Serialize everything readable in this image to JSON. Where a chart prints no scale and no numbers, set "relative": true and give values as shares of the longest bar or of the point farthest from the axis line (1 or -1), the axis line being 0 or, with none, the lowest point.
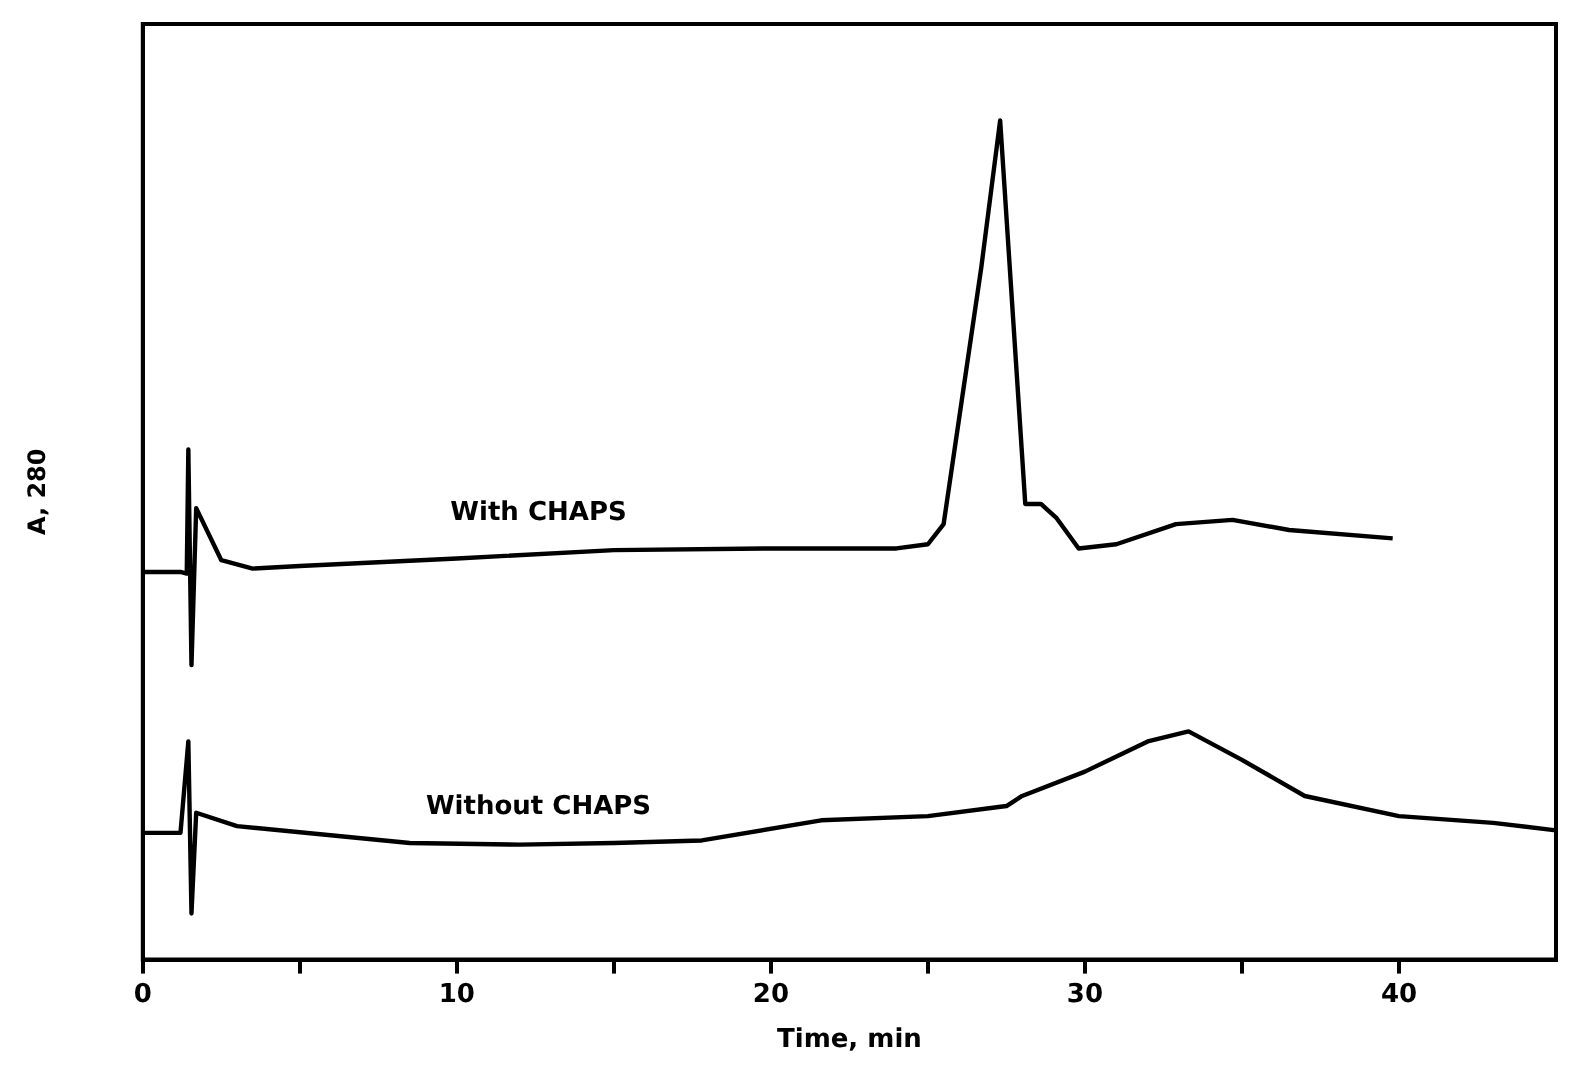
{
  "chart_data": {
    "type": "line",
    "relative": true,
    "xlabel": "Time, min",
    "ylabel": "A, 280",
    "xlim": [
      0,
      45
    ],
    "xticks": [
      0,
      {
        "value": 5,
        "label": null
      },
      10,
      {
        "value": 15,
        "label": null
      },
      20,
      {
        "value": 25,
        "label": null
      },
      30,
      {
        "value": 35,
        "label": null
      },
      40
    ],
    "grid": false,
    "legend": false,
    "marker": "none",
    "line_style": "solid",
    "series": [
      {
        "name": "With CHAPS",
        "color": "#000000",
        "x": [
          0,
          1.2,
          1.4,
          1.45,
          1.55,
          1.7,
          2.5,
          3.5,
          5,
          10,
          15,
          20,
          24,
          25,
          25.5,
          26.7,
          27.3,
          28.1,
          28.6,
          29.1,
          29.8,
          31,
          32.9,
          34.7,
          36.5,
          39.8
        ],
        "values": [
          0.462,
          0.462,
          0.46,
          0.608,
          0.351,
          0.538,
          0.476,
          0.466,
          0.469,
          0.478,
          0.488,
          0.49,
          0.49,
          0.495,
          0.519,
          0.825,
          1,
          0.543,
          0.543,
          0.526,
          0.49,
          0.495,
          0.519,
          0.524,
          0.512,
          0.502
        ]
      },
      {
        "name": "Without CHAPS",
        "color": "#000000",
        "x": [
          0,
          1.2,
          1.45,
          1.55,
          1.7,
          3,
          8.5,
          12,
          15,
          17.8,
          21.6,
          25,
          27.5,
          28,
          30,
          32,
          33.3,
          35,
          37,
          40,
          43,
          45
        ],
        "values": [
          0.151,
          0.151,
          0.26,
          0.055,
          0.175,
          0.159,
          0.139,
          0.137,
          0.139,
          0.142,
          0.166,
          0.171,
          0.183,
          0.195,
          0.224,
          0.26,
          0.272,
          0.238,
          0.195,
          0.171,
          0.163,
          0.154
        ]
      }
    ]
  }
}
